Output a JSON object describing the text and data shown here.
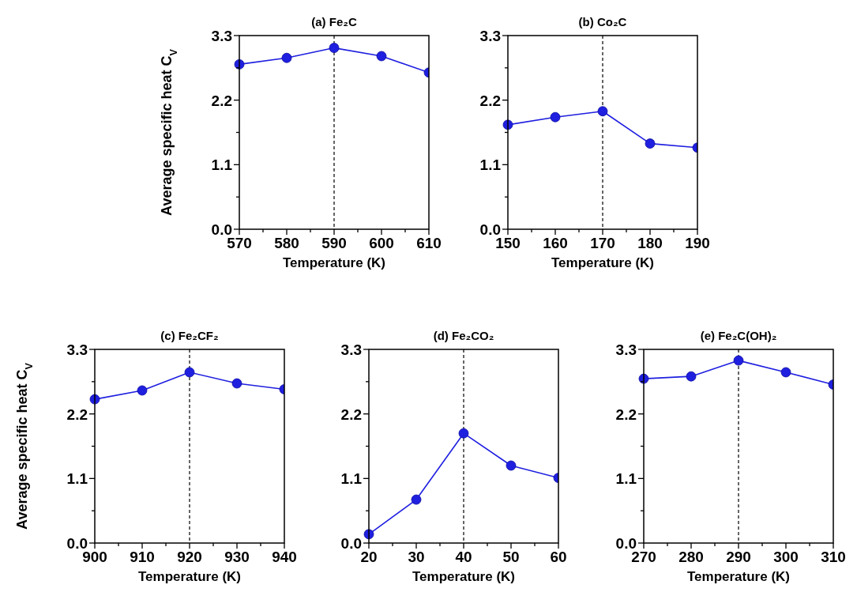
{
  "chart_data": [
    {
      "type": "line",
      "title": "(a) Fe₂C",
      "xlabel": "Temperature (K)",
      "ylabel": "Average specific heat C$_{V}$",
      "x": [
        570,
        580,
        590,
        600,
        610
      ],
      "series": [
        {
          "color": "#1f1fe0",
          "values": [
            2.81,
            2.92,
            3.09,
            2.95,
            2.67
          ]
        }
      ],
      "xlim": [
        570,
        610
      ],
      "xticks": [
        570,
        {
          "value": 575,
          "label": null
        },
        580,
        {
          "value": 585,
          "label": null
        },
        590,
        {
          "value": 595,
          "label": null
        },
        600,
        {
          "value": 605,
          "label": null
        },
        610
      ],
      "ylim": [
        0,
        3.3
      ],
      "yticks": [
        {
          "value": 0,
          "label": "0.0"
        },
        {
          "value": 0.55,
          "label": null
        },
        1.1,
        {
          "value": 1.65,
          "label": null
        },
        2.2,
        {
          "value": 2.75,
          "label": null
        },
        3.3
      ],
      "ref_lines": [
        {
          "axis": "x",
          "value": 590,
          "color": "#000000",
          "line_style": "dashed"
        }
      ],
      "marker": "circle",
      "line_style": "solid",
      "grid": false
    },
    {
      "type": "line",
      "title": "(b) Co₂C",
      "xlabel": "Temperature (K)",
      "x": [
        150,
        160,
        170,
        180,
        190
      ],
      "series": [
        {
          "color": "#1f1fe0",
          "values": [
            1.78,
            1.91,
            2.01,
            1.46,
            1.39
          ]
        }
      ],
      "xlim": [
        150,
        190
      ],
      "xticks": [
        150,
        {
          "value": 155,
          "label": null
        },
        160,
        {
          "value": 165,
          "label": null
        },
        170,
        {
          "value": 175,
          "label": null
        },
        180,
        {
          "value": 185,
          "label": null
        },
        190
      ],
      "ylim": [
        0,
        3.3
      ],
      "yticks": [
        {
          "value": 0,
          "label": "0.0"
        },
        {
          "value": 0.55,
          "label": null
        },
        1.1,
        {
          "value": 1.65,
          "label": null
        },
        2.2,
        {
          "value": 2.75,
          "label": null
        },
        3.3
      ],
      "ref_lines": [
        {
          "axis": "x",
          "value": 170,
          "color": "#000000",
          "line_style": "dashed"
        }
      ],
      "marker": "circle",
      "line_style": "solid",
      "grid": false
    },
    {
      "type": "line",
      "title": "(c) Fe₂CF₂",
      "xlabel": "Temperature (K)",
      "ylabel": "Average specific heat C$_{V}$",
      "x": [
        900,
        910,
        920,
        930,
        940
      ],
      "series": [
        {
          "color": "#1f1fe0",
          "values": [
            2.45,
            2.6,
            2.91,
            2.72,
            2.62
          ]
        }
      ],
      "xlim": [
        900,
        940
      ],
      "xticks": [
        900,
        {
          "value": 905,
          "label": null
        },
        910,
        {
          "value": 915,
          "label": null
        },
        920,
        {
          "value": 925,
          "label": null
        },
        930,
        {
          "value": 935,
          "label": null
        },
        940
      ],
      "ylim": [
        0,
        3.3
      ],
      "yticks": [
        {
          "value": 0,
          "label": "0.0"
        },
        {
          "value": 0.55,
          "label": null
        },
        1.1,
        {
          "value": 1.65,
          "label": null
        },
        2.2,
        {
          "value": 2.75,
          "label": null
        },
        3.3
      ],
      "ref_lines": [
        {
          "axis": "x",
          "value": 920,
          "color": "#000000",
          "line_style": "dashed"
        }
      ],
      "marker": "circle",
      "line_style": "solid",
      "grid": false
    },
    {
      "type": "line",
      "title": "(d) Fe₂CO₂",
      "xlabel": "Temperature (K)",
      "x": [
        20,
        30,
        40,
        50,
        60
      ],
      "series": [
        {
          "color": "#1f1fe0",
          "values": [
            0.15,
            0.74,
            1.87,
            1.32,
            1.11
          ]
        }
      ],
      "xlim": [
        20,
        60
      ],
      "xticks": [
        20,
        {
          "value": 25,
          "label": null
        },
        30,
        {
          "value": 35,
          "label": null
        },
        40,
        {
          "value": 45,
          "label": null
        },
        50,
        {
          "value": 55,
          "label": null
        },
        60
      ],
      "ylim": [
        0,
        3.3
      ],
      "yticks": [
        {
          "value": 0,
          "label": "0.0"
        },
        {
          "value": 0.55,
          "label": null
        },
        1.1,
        {
          "value": 1.65,
          "label": null
        },
        2.2,
        {
          "value": 2.75,
          "label": null
        },
        3.3
      ],
      "ref_lines": [
        {
          "axis": "x",
          "value": 40,
          "color": "#000000",
          "line_style": "dashed"
        }
      ],
      "marker": "circle",
      "line_style": "solid",
      "grid": false
    },
    {
      "type": "line",
      "title": "(e) Fe₂C(OH)₂",
      "xlabel": "Temperature (K)",
      "x": [
        270,
        280,
        290,
        300,
        310
      ],
      "series": [
        {
          "color": "#1f1fe0",
          "values": [
            2.8,
            2.84,
            3.11,
            2.91,
            2.7
          ]
        }
      ],
      "xlim": [
        270,
        310
      ],
      "xticks": [
        270,
        {
          "value": 275,
          "label": null
        },
        280,
        {
          "value": 285,
          "label": null
        },
        290,
        {
          "value": 295,
          "label": null
        },
        300,
        {
          "value": 305,
          "label": null
        },
        310
      ],
      "ylim": [
        0,
        3.3
      ],
      "yticks": [
        {
          "value": 0,
          "label": "0.0"
        },
        {
          "value": 0.55,
          "label": null
        },
        1.1,
        {
          "value": 1.65,
          "label": null
        },
        2.2,
        {
          "value": 2.75,
          "label": null
        },
        3.3
      ],
      "ref_lines": [
        {
          "axis": "x",
          "value": 290,
          "color": "#000000",
          "line_style": "dashed"
        }
      ],
      "marker": "circle",
      "line_style": "solid",
      "grid": false
    }
  ]
}
